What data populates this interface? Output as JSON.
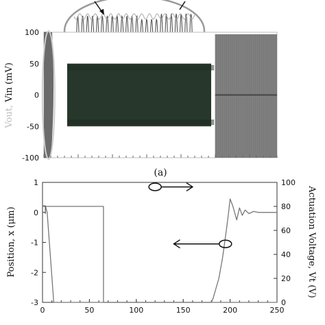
{
  "chart_data": [
    {
      "type": "line",
      "panel_label": "(a)",
      "ylabel_parts": [
        {
          "text": "Vout,",
          "color": "#bdbdbd"
        },
        {
          "text": " Vin (mV)",
          "color": "#111111"
        }
      ],
      "ylim": [
        -100,
        100
      ],
      "yticks": [
        -100,
        -50,
        0,
        50,
        100
      ],
      "grid": false,
      "series": [
        {
          "role": "oscillating band",
          "values_range": [
            -50,
            50
          ],
          "x_range": [
            0.1,
            0.6
          ],
          "color": "#27372b"
        },
        {
          "role": "dense noise block",
          "values_range": [
            -100,
            100
          ],
          "x_range": [
            0.62,
            0.84
          ],
          "color": "#7a7a7a"
        }
      ],
      "inset": {
        "description_shown": "zoomed waveform",
        "arrows": 2
      }
    },
    {
      "type": "line",
      "xlim": [
        0,
        250
      ],
      "xticks": [
        0,
        50,
        100,
        150,
        200,
        250
      ],
      "ylim": [
        -3,
        1
      ],
      "yticks": [
        -3,
        -2,
        -1,
        0,
        1
      ],
      "y2lim": [
        0,
        100
      ],
      "y2ticks": [
        0,
        20,
        40,
        60,
        80,
        100
      ],
      "ylabel": "Position, x (μm)",
      "y2label": "Actuation Voltage, Vt (V)",
      "grid": false,
      "series": [
        {
          "axis": "right",
          "x": [
            0,
            0,
            65,
            65,
            250
          ],
          "y": [
            80,
            80,
            80,
            0,
            0
          ]
        },
        {
          "axis": "left",
          "x": [
            0,
            3,
            5,
            12,
            13,
            180,
            182,
            188,
            192,
            196,
            198,
            200,
            203,
            207,
            210,
            213,
            216,
            220,
            225,
            230,
            240,
            250
          ],
          "y": [
            0.22,
            0.22,
            0,
            -3,
            -3,
            -3,
            -2.85,
            -2.2,
            -1.5,
            -0.6,
            -0.1,
            0.45,
            0.2,
            -0.25,
            0.15,
            -0.1,
            0.08,
            -0.04,
            0.03,
            0,
            0,
            0
          ]
        }
      ],
      "annotations": [
        {
          "type": "circle-arrow",
          "circle_at": [
            120,
            0.85
          ],
          "arrow_to": [
            160,
            0.85
          ],
          "direction": "right"
        },
        {
          "type": "circle-arrow",
          "circle_at": [
            195,
            -1.05
          ],
          "arrow_to": [
            140,
            -1.05
          ],
          "direction": "left"
        }
      ]
    }
  ]
}
